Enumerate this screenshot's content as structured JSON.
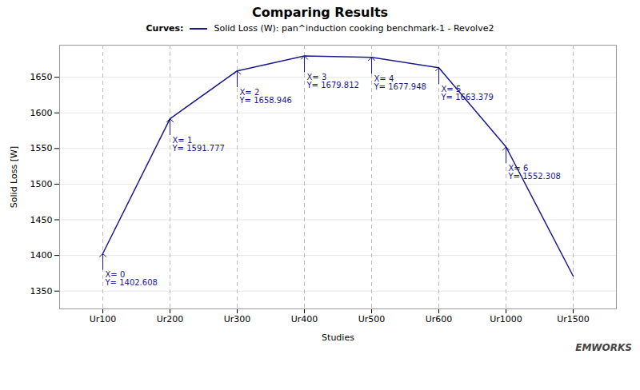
{
  "chart_data": {
    "type": "line",
    "title": "Comparing Results",
    "x_label": "Studies",
    "y_label": "Solid Loss [W]",
    "categories": [
      "Ur100",
      "Ur200",
      "Ur300",
      "Ur400",
      "Ur500",
      "Ur600",
      "Ur1000",
      "Ur1500"
    ],
    "series": [
      {
        "name": "Solid Loss (W): pan^induction cooking benchmark-1 - Revolve2",
        "color": "#1a1a8c",
        "values": [
          1402.608,
          1591.777,
          1658.946,
          1679.812,
          1677.948,
          1663.379,
          1552.308,
          1371.0
        ]
      }
    ],
    "legend_title": "Curves:",
    "legend": "top",
    "ylim": [
      1325,
      1695
    ],
    "yticks": [
      1350,
      1400,
      1450,
      1500,
      1550,
      1600,
      1650
    ],
    "grid": true,
    "annotations": [
      {
        "text": "X= 0\nY= 1402.608",
        "x": "Ur100",
        "y": 1402.608
      },
      {
        "text": "X= 1\nY= 1591.777",
        "x": "Ur200",
        "y": 1591.777
      },
      {
        "text": "X= 2\nY= 1658.946",
        "x": "Ur300",
        "y": 1658.946
      },
      {
        "text": "X= 3\nY= 1679.812",
        "x": "Ur400",
        "y": 1679.812
      },
      {
        "text": "X= 4\nY= 1677.948",
        "x": "Ur500",
        "y": 1677.948
      },
      {
        "text": "X= 5\nY= 1663.379",
        "x": "Ur600",
        "y": 1663.379
      },
      {
        "text": "X= 6\nY= 1552.308",
        "x": "Ur1000",
        "y": 1552.308
      }
    ],
    "annotation_color": "#1a1a8c",
    "caption": "EMWORKS"
  }
}
